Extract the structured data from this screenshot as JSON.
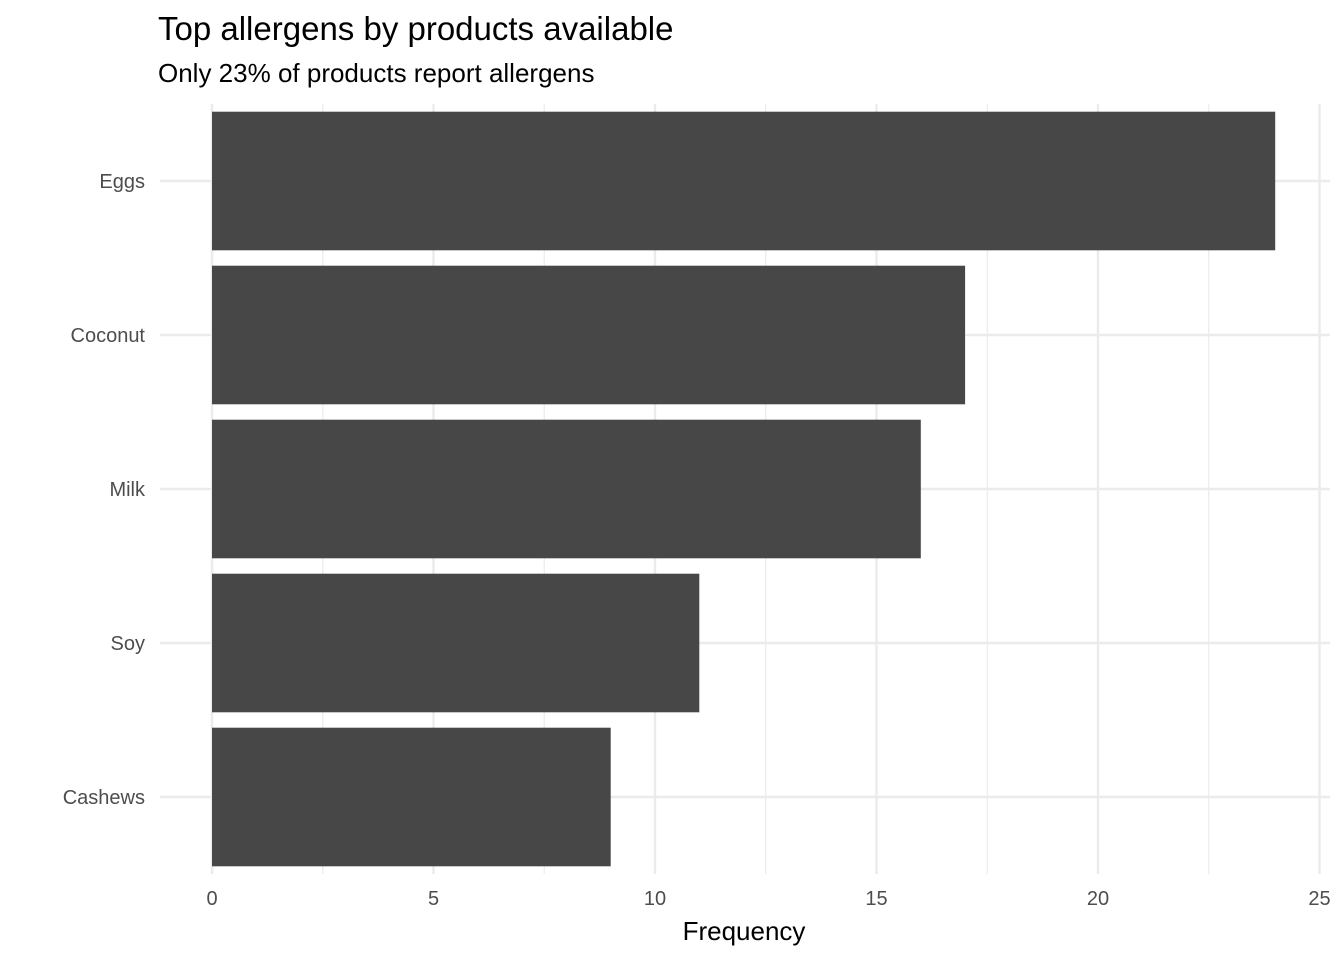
{
  "chart_data": {
    "type": "bar",
    "orientation": "horizontal",
    "title": "Top allergens by products available",
    "subtitle": "Only 23% of products report allergens",
    "xlabel": "Frequency",
    "ylabel": "",
    "categories": [
      "Eggs",
      "Coconut",
      "Milk",
      "Soy",
      "Cashews"
    ],
    "values": [
      24,
      17,
      16,
      11,
      9
    ],
    "xlim": [
      0,
      25
    ],
    "x_ticks": [
      0,
      5,
      10,
      15,
      20,
      25
    ],
    "grid": true,
    "legend": "none",
    "bar_color": "#474747"
  }
}
